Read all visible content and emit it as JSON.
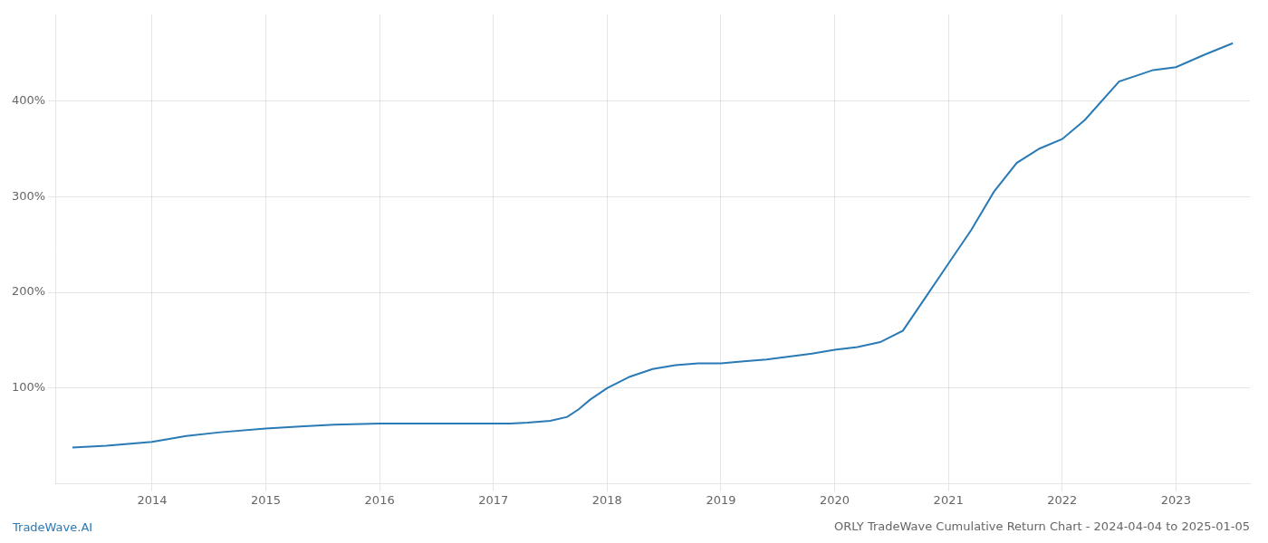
{
  "chart_data": {
    "type": "line",
    "title": "ORLY TradeWave Cumulative Return Chart - 2024-04-04 to 2025-01-05",
    "annotations": [
      "TradeWave.AI"
    ],
    "x": [
      2013.3,
      2013.6,
      2014.0,
      2014.3,
      2014.6,
      2015.0,
      2015.3,
      2015.6,
      2016.0,
      2016.3,
      2016.6,
      2017.0,
      2017.15,
      2017.3,
      2017.5,
      2017.65,
      2017.75,
      2017.85,
      2018.0,
      2018.2,
      2018.4,
      2018.6,
      2018.8,
      2019.0,
      2019.2,
      2019.4,
      2019.6,
      2019.8,
      2020.0,
      2020.2,
      2020.4,
      2020.6,
      2020.8,
      2021.0,
      2021.2,
      2021.4,
      2021.6,
      2021.8,
      2022.0,
      2022.2,
      2022.5,
      2022.8,
      2023.0,
      2023.25,
      2023.5
    ],
    "values": [
      38,
      40,
      44,
      50,
      54,
      58,
      60,
      62,
      63,
      63,
      63,
      63,
      63,
      64,
      66,
      70,
      78,
      88,
      100,
      112,
      120,
      124,
      126,
      126,
      128,
      130,
      133,
      136,
      140,
      143,
      148,
      160,
      195,
      230,
      265,
      305,
      335,
      350,
      360,
      380,
      420,
      432,
      435,
      448,
      460
    ],
    "color": "#2a7ab5",
    "xlim": [
      2013.15,
      2023.65
    ],
    "xticks": [
      2014,
      2015,
      2016,
      2017,
      2018,
      2019,
      2020,
      2021,
      2022,
      2023
    ],
    "ylim": [
      0,
      490
    ],
    "yticks": [
      {
        "value": 100,
        "label": "100%"
      },
      {
        "value": 200,
        "label": "200%"
      },
      {
        "value": 300,
        "label": "300%"
      },
      {
        "value": 400,
        "label": "400%"
      }
    ],
    "grid": true
  }
}
